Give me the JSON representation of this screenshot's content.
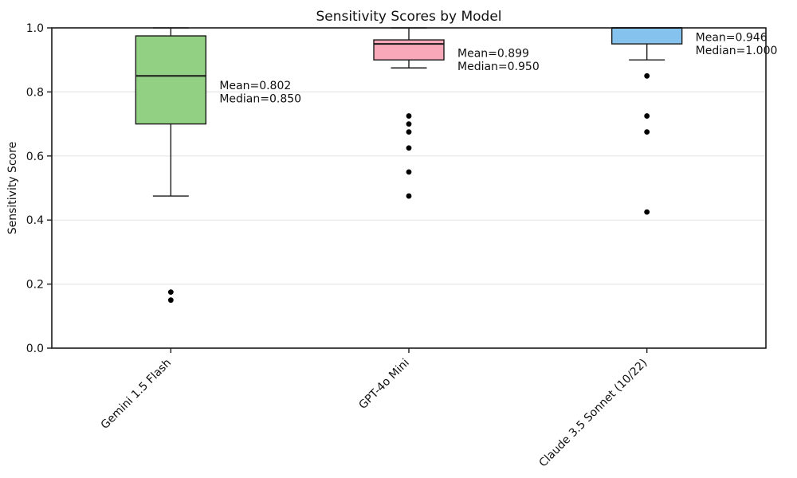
{
  "title": "Sensitivity Scores by Model",
  "chart_data": {
    "type": "boxplot",
    "title": "Sensitivity Scores by Model",
    "xlabel": "",
    "ylabel": "Sensitivity Score",
    "ylim": [
      0.0,
      1.0
    ],
    "yticks": [
      0.0,
      0.2,
      0.4,
      0.6,
      0.8,
      1.0
    ],
    "grid": "horizontal-major-light",
    "legend": "none",
    "x_tick_rotation_deg": 45,
    "categories": [
      "Gemini 1.5 Flash",
      "GPT-4o Mini",
      "Claude 3.5 Sonnet (10/22)"
    ],
    "series": [
      {
        "name": "Gemini 1.5 Flash",
        "box_color": "#92d184",
        "whisker_low": 0.475,
        "q1": 0.7,
        "median": 0.85,
        "q3": 0.975,
        "whisker_high": 1.0,
        "outliers": [
          0.175,
          0.15
        ],
        "mean": 0.802,
        "annotation_lines": [
          "Mean=0.802",
          "Median=0.850"
        ]
      },
      {
        "name": "GPT-4o Mini",
        "box_color": "#f9a8ba",
        "whisker_low": 0.875,
        "q1": 0.9,
        "median": 0.95,
        "q3": 0.9625,
        "whisker_high": 1.0,
        "outliers": [
          0.725,
          0.7,
          0.675,
          0.625,
          0.55,
          0.475
        ],
        "mean": 0.899,
        "annotation_lines": [
          "Mean=0.899",
          "Median=0.950"
        ]
      },
      {
        "name": "Claude 3.5 Sonnet (10/22)",
        "box_color": "#85c3ee",
        "whisker_low": 0.9,
        "q1": 0.95,
        "median": 1.0,
        "q3": 1.0,
        "whisker_high": 1.0,
        "outliers": [
          0.85,
          0.725,
          0.675,
          0.425
        ],
        "mean": 0.946,
        "annotation_lines": [
          "Mean=0.946",
          "Median=1.000"
        ]
      }
    ],
    "style": {
      "edge_color": "#1a1a1a",
      "median_color": "#1a1a1a",
      "outlier_color": "#000000",
      "gridline_color": "#e6e6e6",
      "spine_color": "#1a1a1a"
    }
  }
}
